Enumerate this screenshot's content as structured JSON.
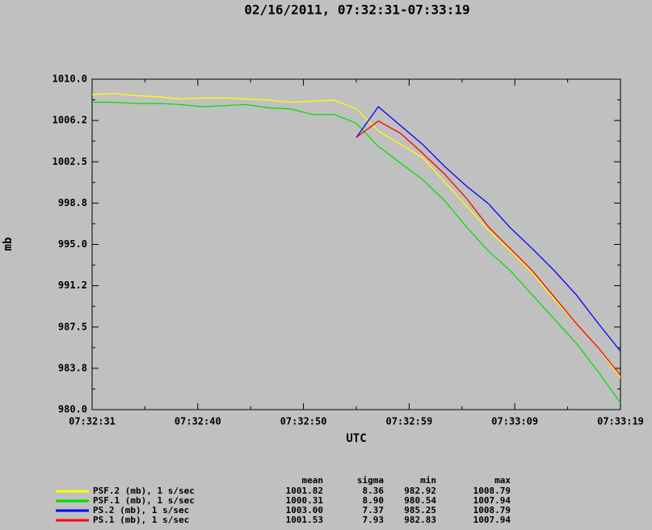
{
  "chart_data": {
    "type": "line",
    "title": "02/16/2011, 07:32:31-07:33:19",
    "xlabel": "UTC",
    "ylabel": "mb",
    "x": [
      0,
      2,
      4,
      6,
      8,
      10,
      12,
      14,
      16,
      18,
      20,
      22,
      24,
      26,
      28,
      30,
      32,
      34,
      36,
      38,
      40,
      42,
      44,
      46,
      48
    ],
    "xlim": [
      0,
      48
    ],
    "xticks": [
      {
        "value": 0,
        "label": "07:32:31"
      },
      {
        "value": 9.6,
        "label": "07:32:40"
      },
      {
        "value": 19.2,
        "label": "07:32:50"
      },
      {
        "value": 28.8,
        "label": "07:32:59"
      },
      {
        "value": 38.4,
        "label": "07:33:09"
      },
      {
        "value": 48,
        "label": "07:33:19"
      }
    ],
    "ylim": [
      980,
      1010
    ],
    "yticks": [
      {
        "value": 980,
        "label": "980.0"
      },
      {
        "value": 983.75,
        "label": "983.8"
      },
      {
        "value": 987.5,
        "label": "987.5"
      },
      {
        "value": 991.25,
        "label": "991.2"
      },
      {
        "value": 995,
        "label": "995.0"
      },
      {
        "value": 998.75,
        "label": "998.8"
      },
      {
        "value": 1002.5,
        "label": "1002.5"
      },
      {
        "value": 1006.25,
        "label": "1006.2"
      },
      {
        "value": 1010,
        "label": "1010.0"
      }
    ],
    "stats_headers": [
      "mean",
      "sigma",
      "min",
      "max"
    ],
    "series": [
      {
        "name": "PSF.2 (mb), 1 s/sec",
        "color": "#ffff00",
        "stats": [
          "1001.82",
          "8.36",
          "982.92",
          "1008.79"
        ],
        "values": [
          1008.6,
          1008.7,
          1008.5,
          1008.4,
          1008.2,
          1008.3,
          1008.3,
          1008.2,
          1008.1,
          1007.9,
          1008.0,
          1008.1,
          1007.3,
          1005.3,
          1004.1,
          1002.9,
          1000.7,
          998.5,
          996.3,
          994.4,
          992.4,
          990.0,
          987.8,
          985.6,
          982.9
        ]
      },
      {
        "name": "PSF.1 (mb), 1 s/sec",
        "color": "#00e000",
        "stats": [
          "1000.31",
          "8.90",
          "980.54",
          "1007.94"
        ],
        "values": [
          1007.9,
          1007.9,
          1007.8,
          1007.8,
          1007.7,
          1007.5,
          1007.6,
          1007.7,
          1007.4,
          1007.3,
          1006.8,
          1006.8,
          1006.0,
          1003.9,
          1002.4,
          1000.9,
          999.0,
          996.6,
          994.4,
          992.6,
          990.4,
          988.2,
          986.0,
          983.4,
          980.6
        ]
      },
      {
        "name": "PS.2 (mb), 1 s/sec",
        "color": "#0000ff",
        "stats": [
          "1003.00",
          "7.37",
          "985.25",
          "1008.79"
        ],
        "values": [
          null,
          null,
          null,
          null,
          null,
          null,
          null,
          null,
          null,
          null,
          null,
          null,
          1004.7,
          1007.5,
          1005.8,
          1004.1,
          1002.1,
          1000.3,
          998.7,
          996.5,
          994.6,
          992.6,
          990.4,
          987.8,
          985.3
        ]
      },
      {
        "name": "PS.1 (mb), 1 s/sec",
        "color": "#ff0000",
        "stats": [
          "1001.53",
          "7.93",
          "982.83",
          "1007.94"
        ],
        "values": [
          null,
          null,
          null,
          null,
          null,
          null,
          null,
          null,
          null,
          null,
          null,
          null,
          1004.7,
          1006.2,
          1005.1,
          1003.3,
          1001.4,
          999.2,
          996.6,
          994.6,
          992.6,
          990.2,
          987.8,
          985.6,
          983.1
        ]
      }
    ]
  }
}
